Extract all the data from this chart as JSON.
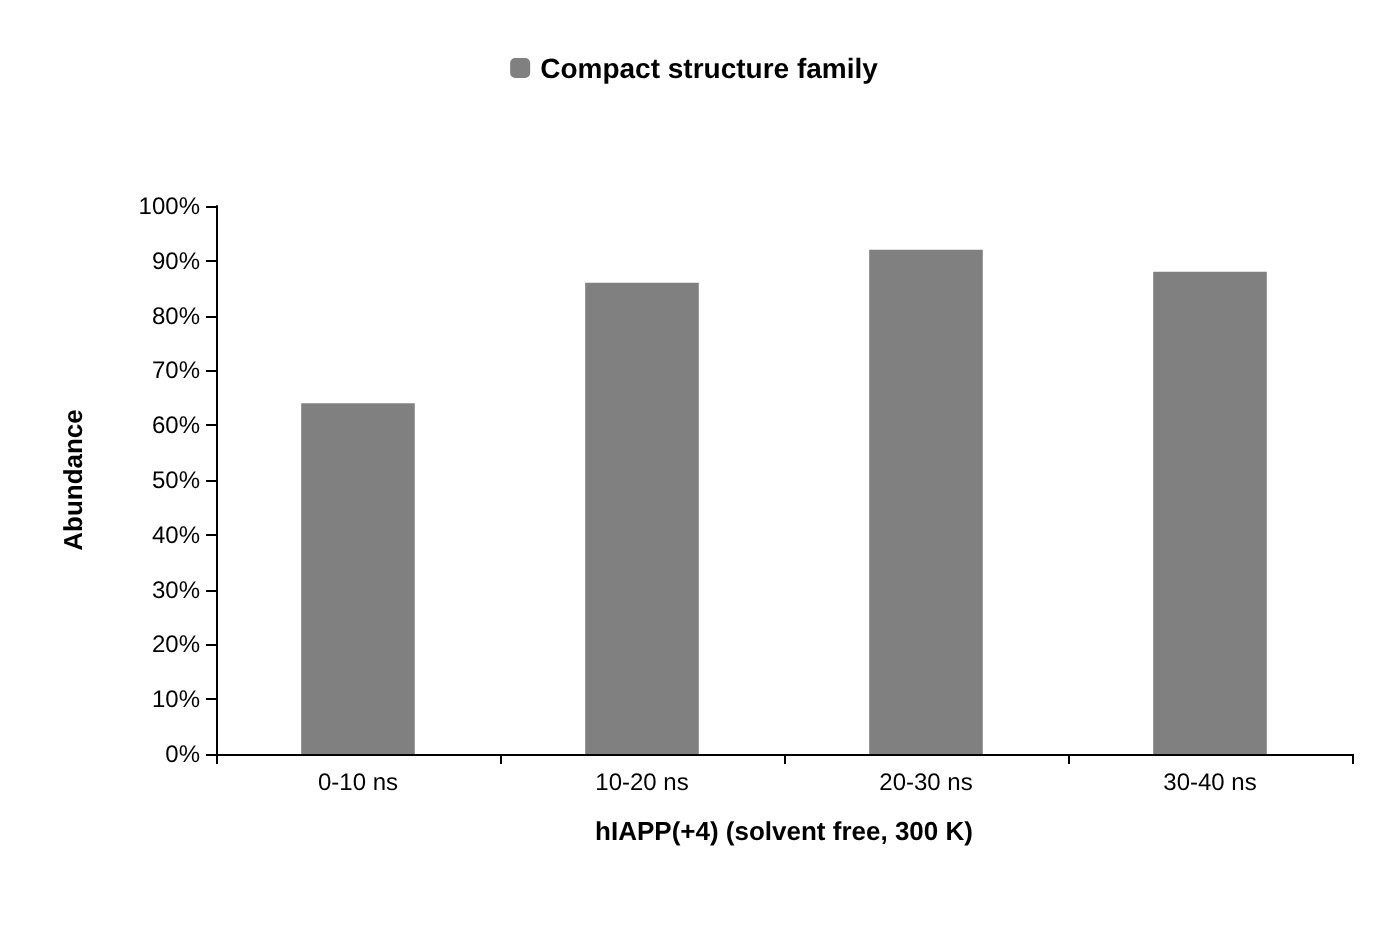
{
  "chart_data": {
    "type": "bar",
    "xlabel": "hIAPP(+4) (solvent free, 300 K)",
    "ylabel": "Abundance",
    "categories": [
      "0-10 ns",
      "10-20 ns",
      "20-30 ns",
      "30-40 ns"
    ],
    "series": [
      {
        "name": "Compact structure family",
        "color": "#808080",
        "values": [
          64,
          86,
          92,
          88
        ]
      }
    ],
    "ylim": [
      0,
      100
    ],
    "yticks": [
      {
        "value": 0,
        "label": "0%"
      },
      {
        "value": 10,
        "label": "10%"
      },
      {
        "value": 20,
        "label": "20%"
      },
      {
        "value": 30,
        "label": "30%"
      },
      {
        "value": 40,
        "label": "40%"
      },
      {
        "value": 50,
        "label": "50%"
      },
      {
        "value": 60,
        "label": "60%"
      },
      {
        "value": 70,
        "label": "70%"
      },
      {
        "value": 80,
        "label": "80%"
      },
      {
        "value": 90,
        "label": "90%"
      },
      {
        "value": 100,
        "label": "100%"
      }
    ],
    "grid": false,
    "legend": "top"
  }
}
